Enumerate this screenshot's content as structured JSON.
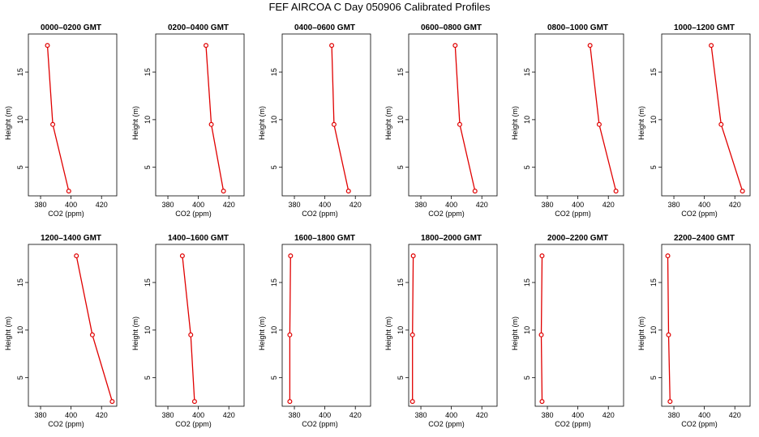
{
  "figure": {
    "title": "FEF AIRCOA C  Day 050906  Calibrated Profiles"
  },
  "chart_data": {
    "type": "line",
    "xlabel": "CO2 (ppm)",
    "ylabel": "Height (m)",
    "xlim": [
      372,
      430
    ],
    "ylim": [
      2,
      19
    ],
    "xticks": [
      380,
      400,
      420
    ],
    "yticks": [
      5,
      10,
      15
    ],
    "grid": false,
    "line_color": "#e00000",
    "panels": [
      {
        "title": "0000–0200 GMT",
        "points": [
          {
            "x": 384.5,
            "y": 17.8
          },
          {
            "x": 388.0,
            "y": 9.5
          },
          {
            "x": 398.5,
            "y": 2.5
          }
        ]
      },
      {
        "title": "0200–0400 GMT",
        "points": [
          {
            "x": 405.0,
            "y": 17.8
          },
          {
            "x": 408.5,
            "y": 9.5
          },
          {
            "x": 416.5,
            "y": 2.5
          }
        ]
      },
      {
        "title": "0400–0600 GMT",
        "points": [
          {
            "x": 404.5,
            "y": 17.8
          },
          {
            "x": 406.0,
            "y": 9.5
          },
          {
            "x": 415.5,
            "y": 2.5
          }
        ]
      },
      {
        "title": "0600–0800 GMT",
        "points": [
          {
            "x": 402.5,
            "y": 17.8
          },
          {
            "x": 405.5,
            "y": 9.5
          },
          {
            "x": 415.5,
            "y": 2.5
          }
        ]
      },
      {
        "title": "0800–1000 GMT",
        "points": [
          {
            "x": 408.0,
            "y": 17.8
          },
          {
            "x": 414.0,
            "y": 9.5
          },
          {
            "x": 425.0,
            "y": 2.5
          }
        ]
      },
      {
        "title": "1000–1200 GMT",
        "points": [
          {
            "x": 404.5,
            "y": 17.8
          },
          {
            "x": 411.0,
            "y": 9.5
          },
          {
            "x": 425.0,
            "y": 2.5
          }
        ]
      },
      {
        "title": "1200–1400 GMT",
        "points": [
          {
            "x": 403.5,
            "y": 17.8
          },
          {
            "x": 414.0,
            "y": 9.5
          },
          {
            "x": 427.0,
            "y": 2.5
          }
        ]
      },
      {
        "title": "1400–1600 GMT",
        "points": [
          {
            "x": 389.5,
            "y": 17.8
          },
          {
            "x": 395.0,
            "y": 9.5
          },
          {
            "x": 397.5,
            "y": 2.5
          }
        ]
      },
      {
        "title": "1600–1800 GMT",
        "points": [
          {
            "x": 377.5,
            "y": 17.8
          },
          {
            "x": 377.0,
            "y": 9.5
          },
          {
            "x": 377.0,
            "y": 2.5
          }
        ]
      },
      {
        "title": "1800–2000 GMT",
        "points": [
          {
            "x": 375.0,
            "y": 17.8
          },
          {
            "x": 374.5,
            "y": 9.5
          },
          {
            "x": 374.5,
            "y": 2.5
          }
        ]
      },
      {
        "title": "2000–2200 GMT",
        "points": [
          {
            "x": 376.5,
            "y": 17.8
          },
          {
            "x": 376.0,
            "y": 9.5
          },
          {
            "x": 376.5,
            "y": 2.5
          }
        ]
      },
      {
        "title": "2200–2400 GMT",
        "points": [
          {
            "x": 376.0,
            "y": 17.8
          },
          {
            "x": 376.5,
            "y": 9.5
          },
          {
            "x": 377.5,
            "y": 2.5
          }
        ]
      }
    ]
  }
}
